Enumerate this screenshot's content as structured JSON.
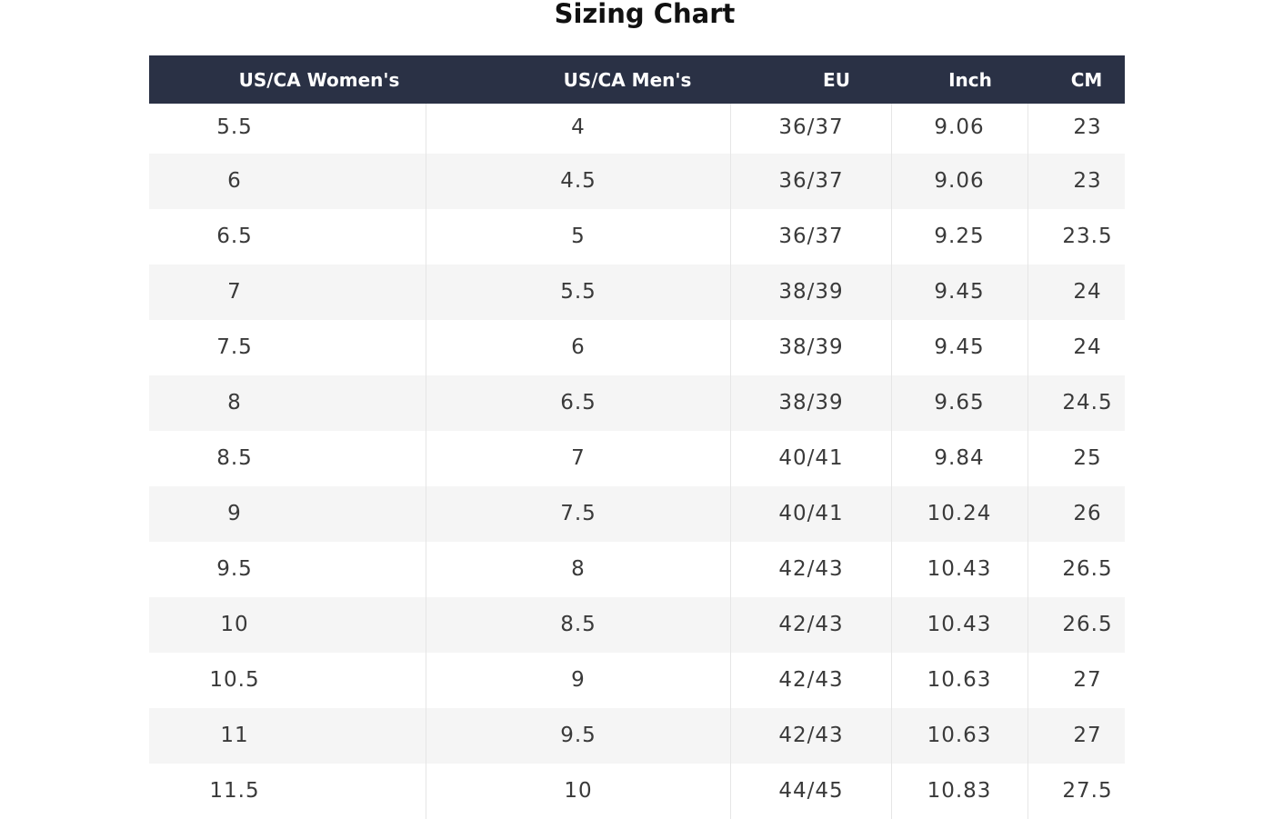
{
  "header": {
    "title": "Sizing Chart"
  },
  "table": {
    "columns": [
      "US/CA Women's",
      "US/CA Men's",
      "EU",
      "Inch",
      "CM"
    ],
    "rows": [
      [
        "5.5",
        "4",
        "36/37",
        "9.06",
        "23"
      ],
      [
        "6",
        "4.5",
        "36/37",
        "9.06",
        "23"
      ],
      [
        "6.5",
        "5",
        "36/37",
        "9.25",
        "23.5"
      ],
      [
        "7",
        "5.5",
        "38/39",
        "9.45",
        "24"
      ],
      [
        "7.5",
        "6",
        "38/39",
        "9.45",
        "24"
      ],
      [
        "8",
        "6.5",
        "38/39",
        "9.65",
        "24.5"
      ],
      [
        "8.5",
        "7",
        "40/41",
        "9.84",
        "25"
      ],
      [
        "9",
        "7.5",
        "40/41",
        "10.24",
        "26"
      ],
      [
        "9.5",
        "8",
        "42/43",
        "10.43",
        "26.5"
      ],
      [
        "10",
        "8.5",
        "42/43",
        "10.43",
        "26.5"
      ],
      [
        "10.5",
        "9",
        "42/43",
        "10.63",
        "27"
      ],
      [
        "11",
        "9.5",
        "42/43",
        "10.63",
        "27"
      ],
      [
        "11.5",
        "10",
        "44/45",
        "10.83",
        "27.5"
      ]
    ]
  }
}
